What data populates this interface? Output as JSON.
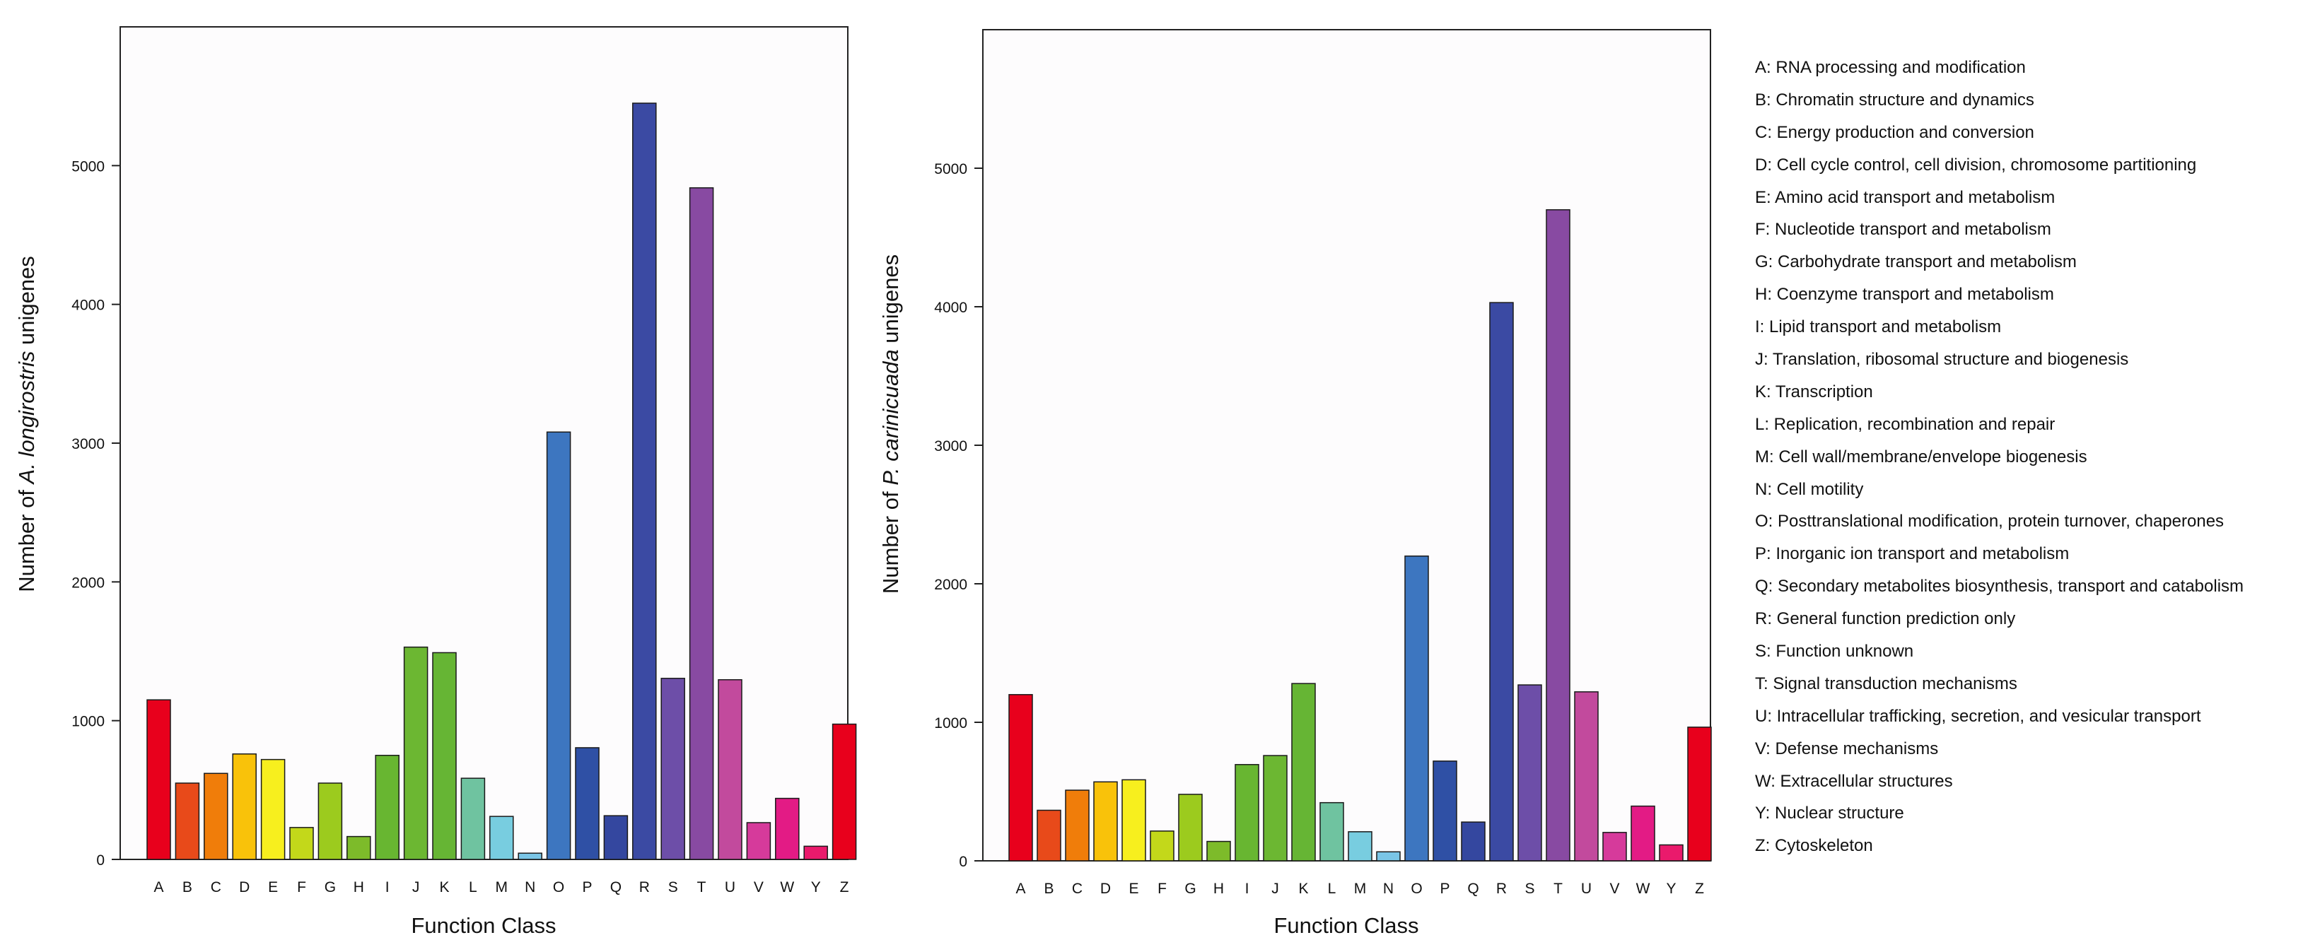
{
  "chart_data": [
    {
      "type": "bar",
      "title": "",
      "xlabel": "Function Class",
      "ylabel_prefix": "Number of ",
      "ylabel_species": "A. longirostris",
      "ylabel_suffix": " unigenes",
      "ylim": [
        0,
        6000
      ],
      "yticks": [
        0,
        1000,
        2000,
        3000,
        4000,
        5000
      ],
      "categories": [
        "A",
        "B",
        "C",
        "D",
        "E",
        "F",
        "G",
        "H",
        "I",
        "J",
        "K",
        "L",
        "M",
        "N",
        "O",
        "P",
        "Q",
        "R",
        "S",
        "T",
        "U",
        "V",
        "W",
        "Y",
        "Z"
      ],
      "values": [
        1150,
        550,
        620,
        760,
        720,
        230,
        550,
        165,
        750,
        1530,
        1490,
        585,
        310,
        45,
        3080,
        805,
        315,
        5450,
        1305,
        4840,
        1295,
        265,
        440,
        95,
        975
      ]
    },
    {
      "type": "bar",
      "title": "",
      "xlabel": "Function Class",
      "ylabel_prefix": "Number of ",
      "ylabel_species": "P. carinicuada",
      "ylabel_suffix": " unigenes",
      "ylim": [
        0,
        6000
      ],
      "yticks": [
        0,
        1000,
        2000,
        3000,
        4000,
        5000
      ],
      "categories": [
        "A",
        "B",
        "C",
        "D",
        "E",
        "F",
        "G",
        "H",
        "I",
        "J",
        "K",
        "L",
        "M",
        "N",
        "O",
        "P",
        "Q",
        "R",
        "S",
        "T",
        "U",
        "V",
        "W",
        "Y",
        "Z"
      ],
      "values": [
        1200,
        365,
        510,
        570,
        585,
        215,
        480,
        140,
        695,
        760,
        1280,
        420,
        210,
        65,
        2200,
        720,
        280,
        4030,
        1270,
        4700,
        1220,
        205,
        395,
        115,
        965
      ]
    }
  ],
  "colors": [
    "#e8001c",
    "#e84a1a",
    "#f07d0a",
    "#f9c20a",
    "#f7ef1e",
    "#c3d81a",
    "#9ccb1e",
    "#7dbb2a",
    "#68b631",
    "#6cb732",
    "#66b534",
    "#6fc3a0",
    "#78cde0",
    "#7ac5e6",
    "#3d76c0",
    "#2f50a5",
    "#34479f",
    "#3b4aa3",
    "#6d4ea8",
    "#884aa2",
    "#c24a9d",
    "#d63a9b",
    "#e31b85",
    "#ea1a6c",
    "#e8001c"
  ],
  "legend": [
    "A: RNA processing and modification",
    "B: Chromatin structure and dynamics",
    "C: Energy production and conversion",
    "D: Cell cycle control, cell division, chromosome partitioning",
    "E: Amino acid transport and metabolism",
    "F: Nucleotide transport and metabolism",
    "G: Carbohydrate transport and metabolism",
    "H: Coenzyme transport and metabolism",
    "I: Lipid transport and metabolism",
    "J: Translation, ribosomal structure and biogenesis",
    "K: Transcription",
    "L: Replication, recombination and repair",
    "M: Cell wall/membrane/envelope biogenesis",
    "N: Cell motility",
    "O: Posttranslational modification, protein turnover, chaperones",
    "P: Inorganic ion transport and metabolism",
    "Q: Secondary metabolites biosynthesis, transport and catabolism",
    "R: General function prediction only",
    "S: Function unknown",
    "T: Signal transduction mechanisms",
    "U: Intracellular trafficking, secretion, and vesicular transport",
    "V: Defense mechanisms",
    "W: Extracellular structures",
    "Y: Nuclear structure",
    "Z: Cytoskeleton"
  ]
}
